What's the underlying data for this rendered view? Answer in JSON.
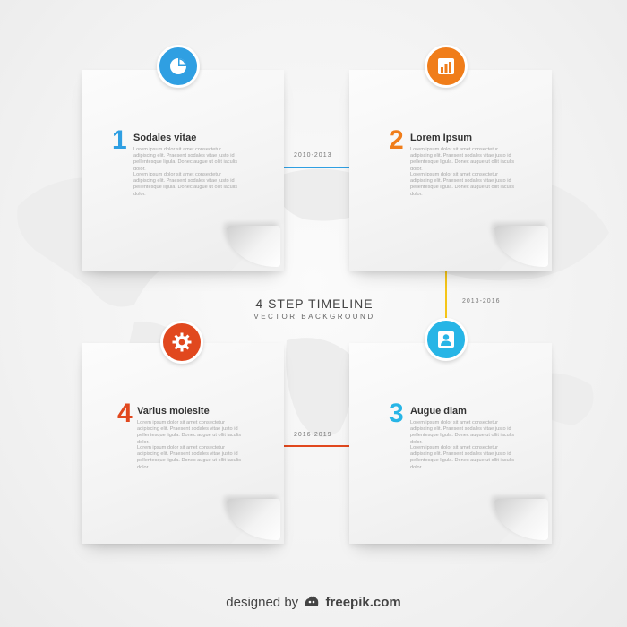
{
  "center": {
    "title": "4 STEP TIMELINE",
    "subtitle": "VECTOR BACKGROUND"
  },
  "steps": [
    {
      "number": "1",
      "title": "Sodales vitae",
      "color": "#2f9fe2",
      "icon": "pie-chart-icon",
      "para1": "Lorem ipsum dolor sit amet consectetur adipiscing elit. Praesent sodales vitae justo id pellentesque ligula. Donec augue ut ollit iaculis dolor.",
      "para2": "Lorem ipsum dolor sit amet consectetur adipiscing elit. Praesent sodales vitae justo id pellentesque ligula. Donec augue ut ollit iaculis dolor."
    },
    {
      "number": "2",
      "title": "Lorem Ipsum",
      "color": "#f07d1a",
      "icon": "bar-chart-icon",
      "para1": "Lorem ipsum dolor sit amet consectetur adipiscing elit. Praesent sodales vitae justo id pellentesque ligula. Donec augue ut ollit iaculis dolor.",
      "para2": "Lorem ipsum dolor sit amet consectetur adipiscing elit. Praesent sodales vitae justo id pellentesque ligula. Donec augue ut ollit iaculis dolor."
    },
    {
      "number": "3",
      "title": "Augue diam",
      "color": "#27b5e6",
      "icon": "user-icon",
      "para1": "Lorem ipsum dolor sit amet consectetur adipiscing elit. Praesent sodales vitae justo id pellentesque ligula. Donec augue ut ollit iaculis dolor.",
      "para2": "Lorem ipsum dolor sit amet consectetur adipiscing elit. Praesent sodales vitae justo id pellentesque ligula. Donec augue ut ollit iaculis dolor."
    },
    {
      "number": "4",
      "title": "Varius molesite",
      "color": "#e1481e",
      "icon": "gear-icon",
      "para1": "Lorem ipsum dolor sit amet consectetur adipiscing elit. Praesent sodales vitae justo id pellentesque ligula. Donec augue ut ollit iaculis dolor.",
      "para2": "Lorem ipsum dolor sit amet consectetur adipiscing elit. Praesent sodales vitae justo id pellentesque ligula. Donec augue ut ollit iaculis dolor."
    }
  ],
  "connectors": [
    {
      "label": "2010-2013",
      "color": "#2f9fe2"
    },
    {
      "label": "2013-2016",
      "color": "#f5c518"
    },
    {
      "label": "2016-2019",
      "color": "#e1481e"
    }
  ],
  "footer": {
    "prefix": "designed by",
    "brand": "freepik.com",
    "logo_icon": "freepik-logo-icon"
  }
}
